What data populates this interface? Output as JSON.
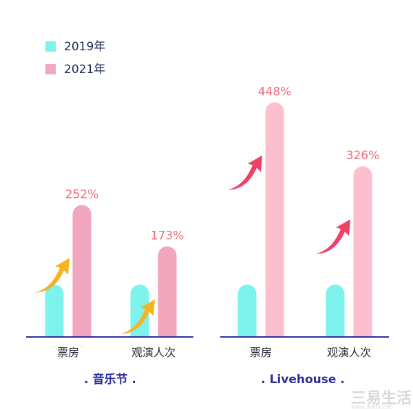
{
  "chart_data": [
    {
      "type": "bar",
      "title": "音乐节",
      "title_display": ". 音乐节 .",
      "categories": [
        "票房",
        "观演人次"
      ],
      "series": [
        {
          "name": "2019年",
          "values": [
            100,
            100
          ]
        },
        {
          "name": "2021年",
          "values": [
            252,
            173
          ]
        }
      ],
      "growth_labels": [
        "252%",
        "173%"
      ],
      "legend": "top-left",
      "grid": false
    },
    {
      "type": "bar",
      "title": "Livehouse",
      "title_display": ". Livehouse .",
      "categories": [
        "票房",
        "观演人次"
      ],
      "series": [
        {
          "name": "2019年",
          "values": [
            100,
            100
          ]
        },
        {
          "name": "2021年",
          "values": [
            448,
            326
          ]
        }
      ],
      "growth_labels": [
        "448%",
        "326%"
      ],
      "grid": false
    }
  ],
  "legend": [
    {
      "label": "2019年",
      "color": "#7ef3ee"
    },
    {
      "label": "2021年",
      "color": "#f2a8bf"
    }
  ],
  "colors": {
    "bar_2019": "#7ef3ee",
    "bar_2021_festival": "#f0a6bc",
    "bar_2021_livehouse": "#fbbfce",
    "axis": "#2c2c9e",
    "label_pct": "#f06b7a",
    "arrow_festival": "#f5b324",
    "arrow_livehouse": "#ef4068",
    "text": "#2a2a3a",
    "watermark": "#d8d8d8"
  },
  "watermark": {
    "cn": "三易生活",
    "url": "www.3elife.net"
  }
}
